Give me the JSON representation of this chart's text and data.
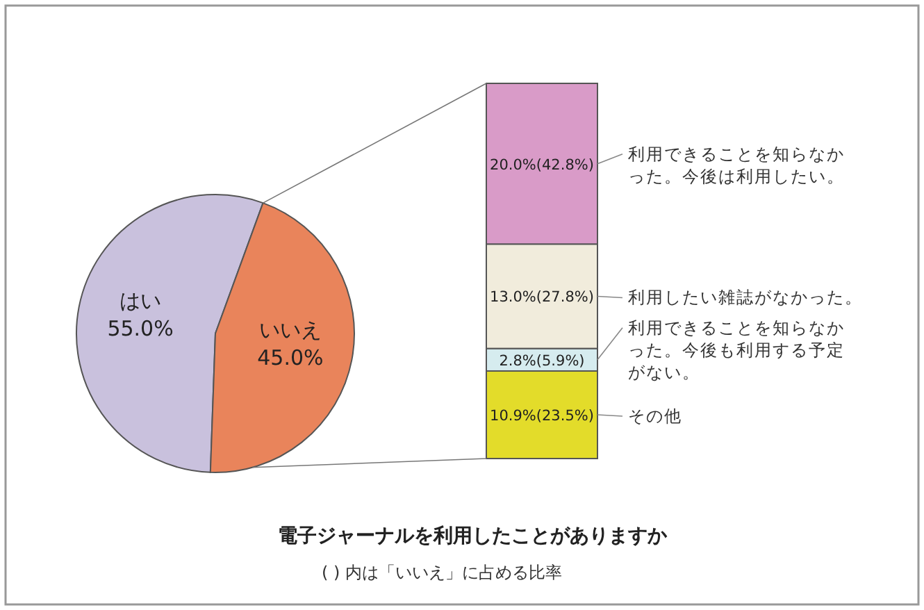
{
  "chart_data": [
    {
      "type": "pie",
      "title": "電子ジャーナルを利用したことがありますか",
      "subtitle": "( ) 内は「いいえ」に占める比率",
      "categories": [
        "はい",
        "いいえ"
      ],
      "values": [
        55.0,
        45.0
      ],
      "colors": [
        "#c9c1dd",
        "#e9845b"
      ],
      "value_labels": [
        "55.0%",
        "45.0%"
      ]
    },
    {
      "type": "bar",
      "stacked": true,
      "categories": [
        null
      ],
      "series": [
        {
          "name": "その他",
          "color": "#e3dc2a",
          "values": [
            10.9
          ],
          "value_labels": [
            "10.9%(23.5%)"
          ]
        },
        {
          "name": "利用できることを知らなかった。今後も利用する予定がない。",
          "color": "#d6ecef",
          "values": [
            2.8
          ],
          "value_labels": [
            "2.8%(5.9%)"
          ]
        },
        {
          "name": "利用したい雑誌がなかった。",
          "color": "#f1ecdc",
          "values": [
            13.0
          ],
          "value_labels": [
            "13.0%(27.8%)"
          ]
        },
        {
          "name": "利用できることを知らなかった。今後は利用したい。",
          "color": "#d99bc8",
          "values": [
            20.0
          ],
          "value_labels": [
            "20.0%(42.8%)"
          ]
        }
      ]
    }
  ]
}
